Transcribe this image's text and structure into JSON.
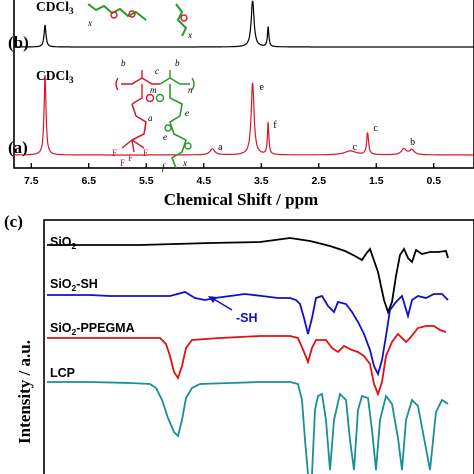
{
  "chart_data": [
    {
      "type": "line",
      "panel_labels": [
        "(b)",
        "(a)"
      ],
      "solvent_labels": [
        "CDCl3",
        "CDCl3"
      ],
      "xlabel": "Chemical Shift / ppm",
      "xlim": [
        7.8,
        -0.2
      ],
      "x_reversed": true,
      "x_ticks": [
        "7.5",
        "6.5",
        "5.5",
        "4.5",
        "3.5",
        "2.5",
        "1.5",
        "0.5"
      ],
      "x_tick_values": [
        7.5,
        6.5,
        5.5,
        4.5,
        3.5,
        2.5,
        1.5,
        0.5
      ],
      "series": [
        {
          "color": "#000000",
          "peaks": [
            7.26,
            3.65,
            3.38
          ]
        },
        {
          "color": "#d7192b",
          "peaks": [
            7.26,
            4.35,
            3.65,
            3.38,
            1.95,
            1.65,
            1.02,
            0.88
          ]
        }
      ],
      "peak_labels": [
        {
          "text": "e",
          "x": 3.6
        },
        {
          "text": "f",
          "x": 3.36
        },
        {
          "text": "a",
          "x": 4.32
        },
        {
          "text": "c",
          "x": 1.98
        },
        {
          "text": "c",
          "x": 1.62
        },
        {
          "text": "b",
          "x": 0.98
        }
      ],
      "structure_letters": [
        "b",
        "c",
        "b",
        "m",
        "n",
        "a",
        "e",
        "e",
        "f",
        "x",
        "F",
        "F",
        "F",
        "F"
      ]
    },
    {
      "type": "line",
      "panel_label": "(c)",
      "ylabel": "Intensity / a.u.",
      "series": [
        {
          "name": "SiO2",
          "color": "#000000"
        },
        {
          "name": "SiO2-SH",
          "color": "#1010c8"
        },
        {
          "name": "SiO2-PPEGMA",
          "color": "#e01010"
        },
        {
          "name": "LCP",
          "color": "#1a9090"
        }
      ],
      "annotations": [
        {
          "text": "-SH",
          "color": "#1010c8"
        }
      ]
    }
  ],
  "labels": {
    "panel_b": "(b)",
    "panel_a": "(a)",
    "panel_c": "(c)",
    "cdcl3_b": "CDCl",
    "cdcl3_a": "CDCl",
    "sub3": "3",
    "xlabel": "Chemical Shift / ppm",
    "ylabel": "Intensity / a.u.",
    "sio2": "SiO",
    "sio2_sh_suffix": "-SH",
    "sio2_ppegma_suffix": "-PPEGMA",
    "sub2": "2",
    "lcp": "LCP",
    "sh_annot": "-SH"
  },
  "structure": {
    "b1": "b",
    "c": "c",
    "b2": "b",
    "m": "m",
    "n": "n",
    "a": "a",
    "e1": "e",
    "e2": "e",
    "f": "f",
    "x": "x",
    "F1": "F",
    "F2": "F",
    "F3": "F",
    "F4": "F"
  }
}
